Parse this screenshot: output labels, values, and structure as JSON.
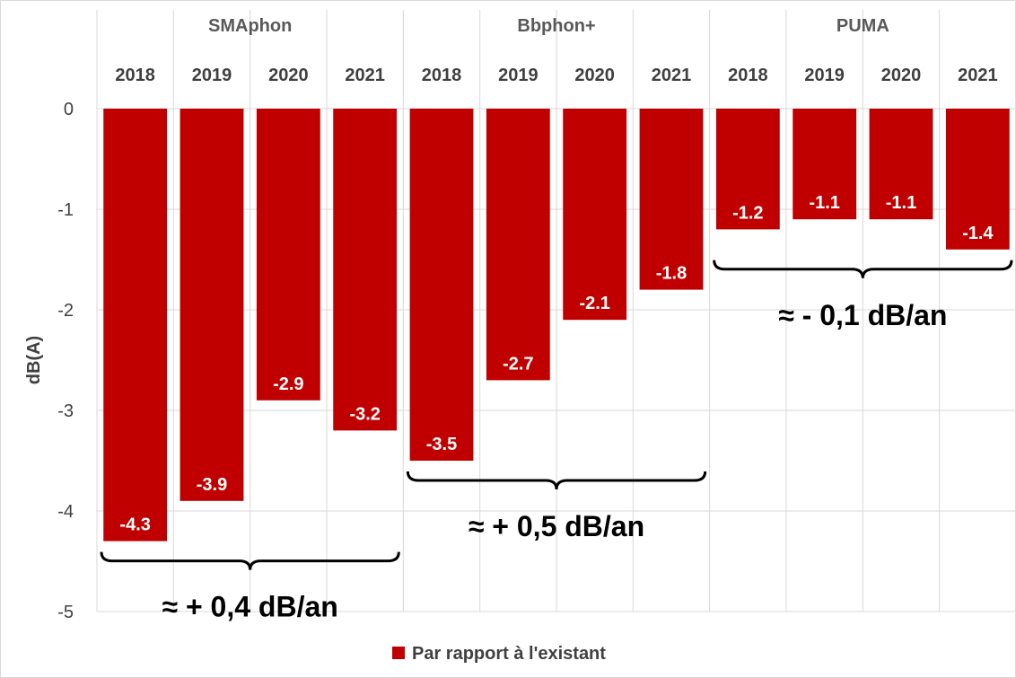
{
  "chart_data": {
    "type": "bar",
    "ylabel": "dB(A)",
    "ylim": [
      -5,
      0
    ],
    "y_ticks": [
      "0",
      "-1",
      "-2",
      "-3",
      "-4",
      "-5"
    ],
    "grid": true,
    "legend_position": "bottom",
    "bar_color": "#C00000",
    "groups": [
      {
        "name": "SMAphon",
        "categories": [
          "2018",
          "2019",
          "2020",
          "2021"
        ],
        "values": [
          -4.3,
          -3.9,
          -2.9,
          -3.2
        ],
        "labels": [
          "-4.3",
          "-3.9",
          "-2.9",
          "-3.2"
        ],
        "trend": "≈ + 0,4 dB/an"
      },
      {
        "name": "Bbphon+",
        "categories": [
          "2018",
          "2019",
          "2020",
          "2021"
        ],
        "values": [
          -3.5,
          -2.7,
          -2.1,
          -1.8
        ],
        "labels": [
          "-3.5",
          "-2.7",
          "-2.1",
          "-1.8"
        ],
        "trend": "≈ + 0,5 dB/an"
      },
      {
        "name": "PUMA",
        "categories": [
          "2018",
          "2019",
          "2020",
          "2021"
        ],
        "values": [
          -1.2,
          -1.1,
          -1.1,
          -1.4
        ],
        "labels": [
          "-1.2",
          "-1.1",
          "-1.1",
          "-1.4"
        ],
        "trend": "≈ - 0,1 dB/an"
      }
    ],
    "series": [
      {
        "name": "Par rapport à l'existant"
      }
    ]
  }
}
